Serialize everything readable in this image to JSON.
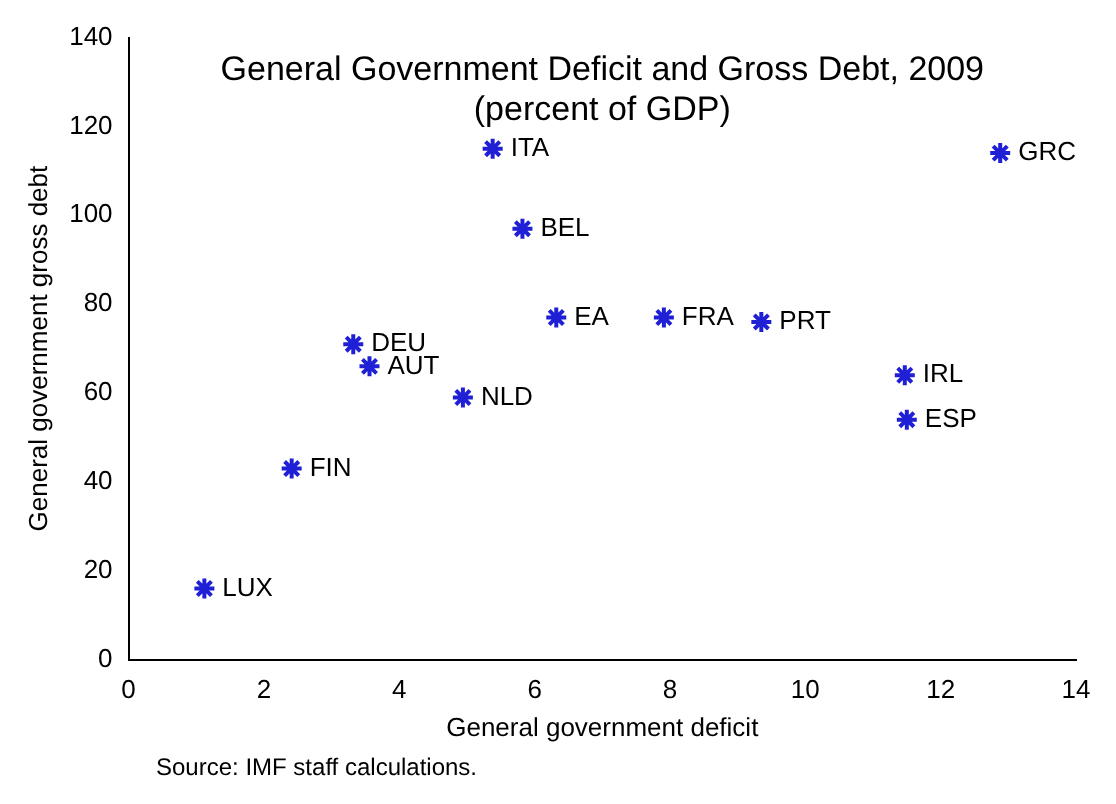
{
  "chart_data": {
    "type": "scatter",
    "title": "General Government Deficit and Gross Debt, 2009",
    "subtitle": "(percent of GDP)",
    "xlabel": "General government deficit",
    "ylabel": "General government gross debt",
    "x": [
      1.12,
      2.41,
      3.32,
      3.56,
      4.94,
      5.38,
      5.82,
      6.32,
      7.91,
      9.35,
      11.47,
      11.5,
      12.88
    ],
    "series": [
      {
        "color": "#1f1fd6",
        "values": [
          16,
          43,
          71,
          66,
          59,
          115,
          97,
          77,
          77,
          76,
          64,
          54,
          114
        ]
      }
    ],
    "marker": "cross",
    "grid": false,
    "legend": false,
    "xlim": [
      0,
      14
    ],
    "xticks": [
      0,
      2,
      4,
      6,
      8,
      10,
      12,
      14
    ],
    "ylim": [
      0,
      140
    ],
    "yticks": [
      0,
      20,
      40,
      60,
      80,
      100,
      120,
      140
    ],
    "annotations": [
      {
        "text": "LUX",
        "x": 1.12,
        "y": 16
      },
      {
        "text": "FIN",
        "x": 2.41,
        "y": 43
      },
      {
        "text": "DEU",
        "x": 3.32,
        "y": 71
      },
      {
        "text": "AUT",
        "x": 3.56,
        "y": 66
      },
      {
        "text": "NLD",
        "x": 4.94,
        "y": 59
      },
      {
        "text": "ITA",
        "x": 5.38,
        "y": 115
      },
      {
        "text": "BEL",
        "x": 5.82,
        "y": 97
      },
      {
        "text": "EA",
        "x": 6.32,
        "y": 77
      },
      {
        "text": "FRA",
        "x": 7.91,
        "y": 77
      },
      {
        "text": "PRT",
        "x": 9.35,
        "y": 76
      },
      {
        "text": "IRL",
        "x": 11.47,
        "y": 64
      },
      {
        "text": "ESP",
        "x": 11.5,
        "y": 54
      },
      {
        "text": "GRC",
        "x": 12.88,
        "y": 114
      },
      "Source: IMF staff calculations."
    ]
  }
}
